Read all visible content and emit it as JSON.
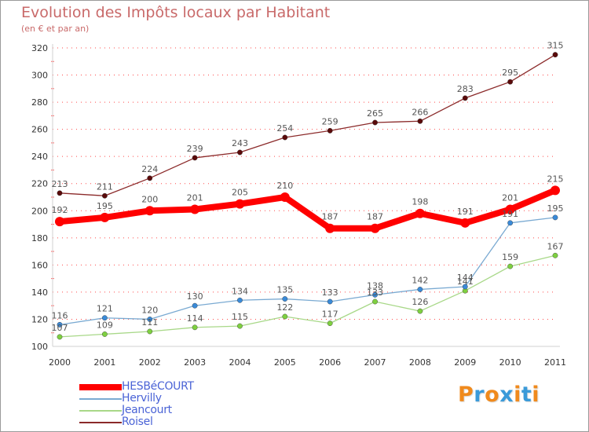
{
  "title": "Evolution des Impôts locaux par Habitant",
  "subtitle": "(en € et par an)",
  "logo": [
    "P",
    "r",
    "o",
    "x",
    "i",
    "t",
    "i"
  ],
  "colors": {
    "axis": "#d0d0d0",
    "grid": "#ff0000",
    "tick_label": "#333333",
    "data_label": "#555555",
    "title": "#c96a6a",
    "legend_text": "#4a63d6",
    "logo": [
      "#f08a1c",
      "#3a9ad9",
      "#f08a1c",
      "#3a9ad9",
      "#f08a1c",
      "#3a9ad9",
      "#f08a1c"
    ]
  },
  "chart_data": {
    "type": "line",
    "title": "Evolution des Impôts locaux par Habitant",
    "subtitle": "(en € et par an)",
    "xlabel": "",
    "ylabel": "",
    "categories": [
      "2000",
      "2001",
      "2002",
      "2003",
      "2004",
      "2005",
      "2006",
      "2007",
      "2008",
      "2009",
      "2010",
      "2011"
    ],
    "ylim": [
      100,
      320
    ],
    "yticks": [
      100,
      120,
      140,
      160,
      180,
      200,
      220,
      240,
      260,
      280,
      300,
      320
    ],
    "series": [
      {
        "name": "Roisel",
        "color": "#8b2a2a",
        "point_color": "#5a0a0a",
        "weight": "thin",
        "values": [
          213,
          211,
          224,
          239,
          243,
          254,
          259,
          265,
          266,
          283,
          295,
          315
        ]
      },
      {
        "name": "Jeancourt",
        "color": "#a8d888",
        "point_color": "#7ed040",
        "weight": "thin",
        "values": [
          107,
          109,
          111,
          114,
          115,
          122,
          117,
          133,
          126,
          141,
          159,
          167
        ]
      },
      {
        "name": "Hervilly",
        "color": "#7aaad2",
        "point_color": "#3a8ad8",
        "weight": "thin",
        "values": [
          116,
          121,
          120,
          130,
          134,
          135,
          133,
          138,
          142,
          144,
          191,
          195
        ]
      },
      {
        "name": "HESBéCOURT",
        "color": "#ff0000",
        "point_color": "#ff0000",
        "weight": "thick",
        "values": [
          192,
          195,
          200,
          201,
          205,
          210,
          187,
          187,
          198,
          191,
          201,
          215
        ]
      }
    ],
    "legend": [
      "HESBéCOURT",
      "Hervilly",
      "Jeancourt",
      "Roisel"
    ],
    "legend_position": "bottom-left",
    "grid": true
  }
}
